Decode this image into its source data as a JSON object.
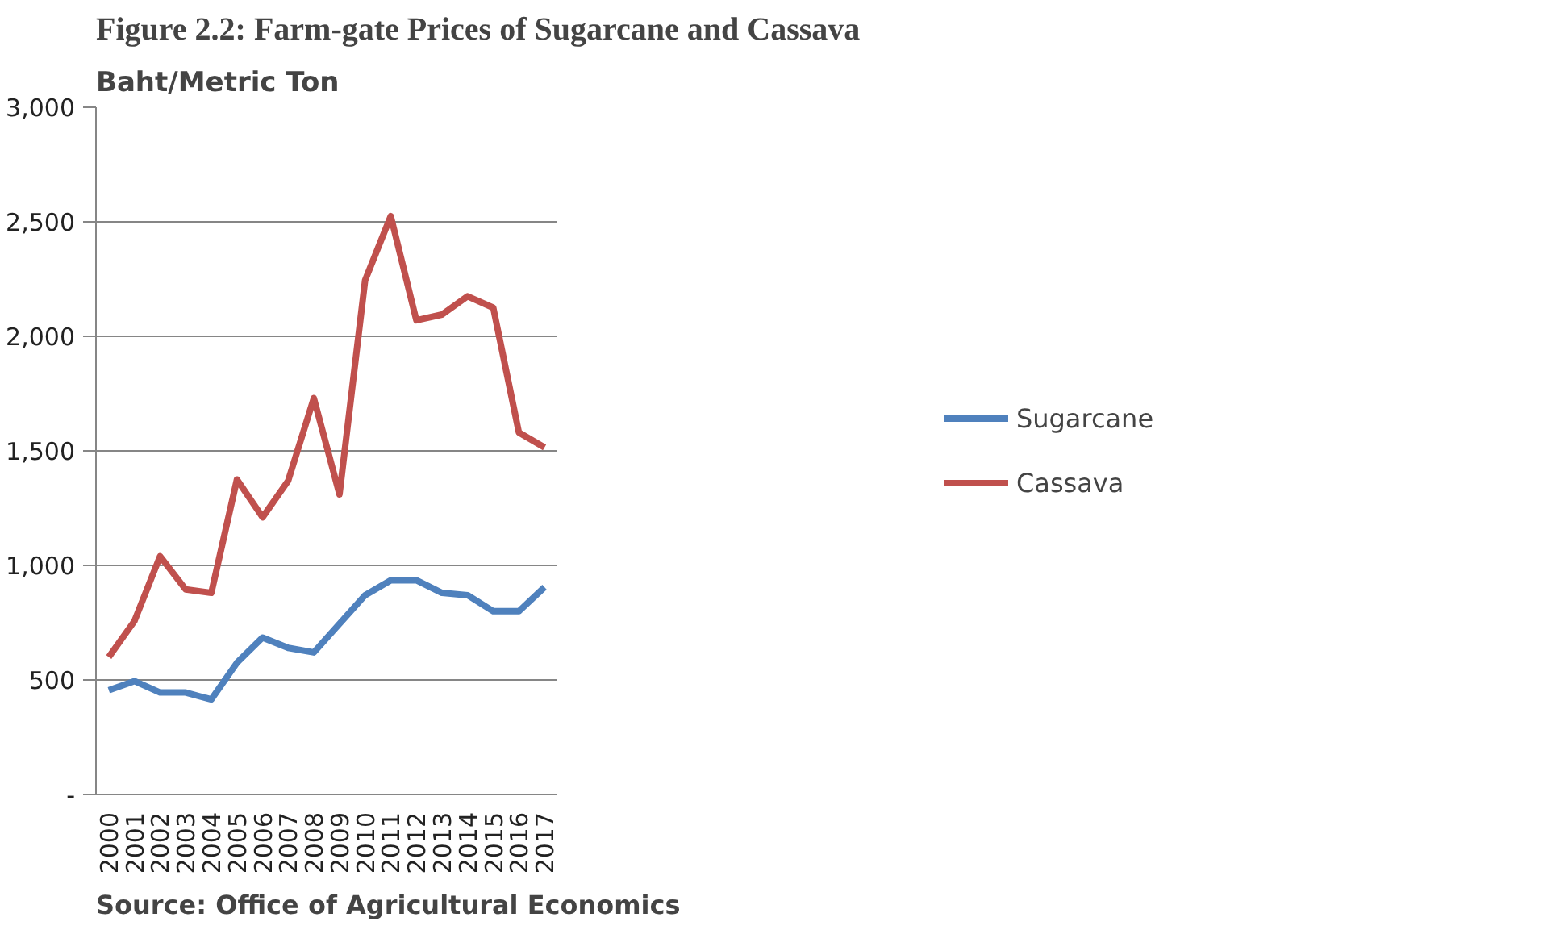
{
  "chart_data": {
    "type": "line",
    "title": "Figure 2.2: Farm-gate Prices of Sugarcane and Cassava",
    "ylabel": "Baht/Metric Ton",
    "categories": [
      "2000",
      "2001",
      "2002",
      "2003",
      "2004",
      "2005",
      "2006",
      "2007",
      "2008",
      "2009",
      "2010",
      "2011",
      "2012",
      "2013",
      "2014",
      "2015",
      "2016",
      "2017"
    ],
    "series": [
      {
        "name": "Sugarcane",
        "color": "#4f81bd",
        "values": [
          455,
          495,
          445,
          445,
          415,
          575,
          685,
          640,
          620,
          745,
          870,
          935,
          935,
          880,
          870,
          800,
          800,
          905
        ]
      },
      {
        "name": "Cassava",
        "color": "#c0504d",
        "values": [
          600,
          757,
          1040,
          895,
          880,
          1375,
          1210,
          1370,
          1730,
          1310,
          2245,
          2525,
          2070,
          2095,
          2175,
          2125,
          1580,
          1515
        ]
      }
    ],
    "ylim": [
      0,
      3000
    ],
    "yticks": [
      {
        "value": 0,
        "label": "-"
      },
      {
        "value": 500,
        "label": "500"
      },
      {
        "value": 1000,
        "label": "1,000"
      },
      {
        "value": 1500,
        "label": "1,500"
      },
      {
        "value": 2000,
        "label": "2,000"
      },
      {
        "value": 2500,
        "label": "2,500"
      },
      {
        "value": 3000,
        "label": "3,000"
      }
    ],
    "grid": "y",
    "legend": "right",
    "line_style": "solid",
    "annotations": [
      "Source: Office of Agricultural Economics"
    ]
  }
}
